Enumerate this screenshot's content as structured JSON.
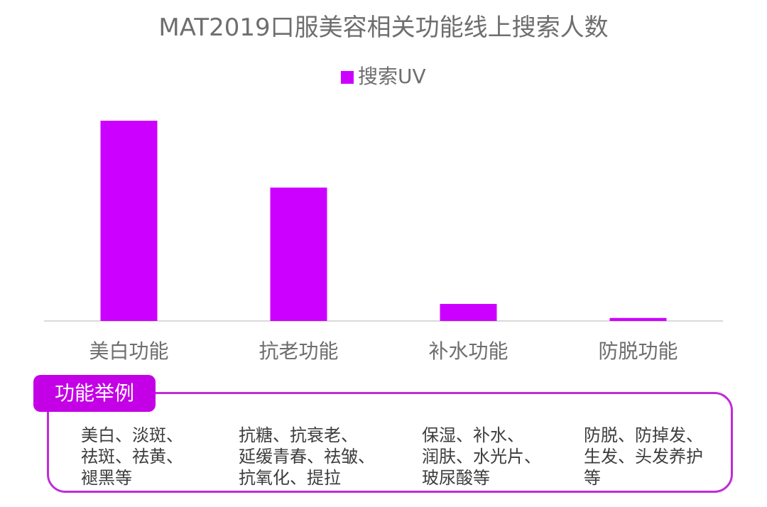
{
  "chart_data": {
    "type": "bar",
    "title": "MAT2019口服美容相关功能线上搜索人数",
    "legend": {
      "entries": [
        {
          "name": "搜索UV",
          "color": "#cc00ff"
        }
      ],
      "placement": "top-center"
    },
    "categories": [
      "美白功能",
      "抗老功能",
      "补水功能",
      "防脱功能"
    ],
    "series": [
      {
        "name": "搜索UV",
        "values": [
          100,
          66.6,
          8.5,
          1.5
        ]
      }
    ],
    "ylim": [
      0,
      100
    ],
    "grid": false,
    "colors": {
      "bar": "#cc00ff",
      "baseline": "#d9d9d9"
    }
  },
  "examples": {
    "tab_label": "功能举例",
    "columns": [
      {
        "text": "美白、淡斑、\n祛斑、祛黄、\n褪黑等"
      },
      {
        "text": "抗糖、抗衰老、\n延缓青春、祛皱、\n抗氧化、提拉"
      },
      {
        "text": "保湿、补水、\n润肤、水光片、\n玻尿酸等"
      },
      {
        "text": "防脱、防掉发、\n生发、头发养护\n等"
      }
    ],
    "colors": {
      "tab": "#c400e6",
      "border": "#c02cd8"
    }
  }
}
